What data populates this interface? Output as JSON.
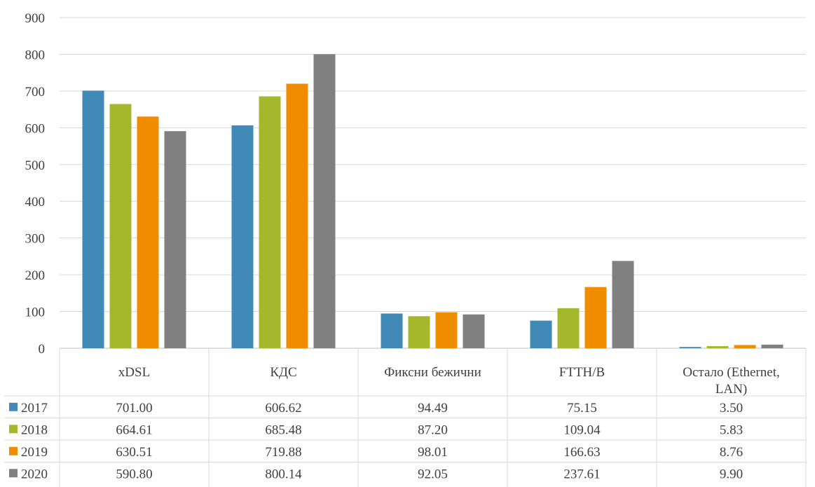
{
  "chart_data": {
    "type": "bar",
    "categories": [
      "xDSL",
      "КДС",
      "Фиксни бежични",
      "FTTH/B",
      "Остало (Ethernet, LAN)"
    ],
    "category_lines": [
      [
        "xDSL"
      ],
      [
        "КДС"
      ],
      [
        "Фиксни бежични"
      ],
      [
        "FTTH/B"
      ],
      [
        "Остало (Ethernet,",
        "LAN)"
      ]
    ],
    "series": [
      {
        "name": "2017",
        "color": "#4189B6",
        "values": [
          701.0,
          606.62,
          94.49,
          75.15,
          3.5
        ],
        "labels": [
          "701.00",
          "606.62",
          "94.49",
          "75.15",
          "3.50"
        ]
      },
      {
        "name": "2018",
        "color": "#A5B82B",
        "values": [
          664.61,
          685.48,
          87.2,
          109.04,
          5.83
        ],
        "labels": [
          "664.61",
          "685.48",
          "87.20",
          "109.04",
          "5.83"
        ]
      },
      {
        "name": "2019",
        "color": "#F08C00",
        "values": [
          630.51,
          719.88,
          98.01,
          166.63,
          8.76
        ],
        "labels": [
          "630.51",
          "719.88",
          "98.01",
          "166.63",
          "8.76"
        ]
      },
      {
        "name": "2020",
        "color": "#808080",
        "values": [
          590.8,
          800.14,
          92.05,
          237.61,
          9.9
        ],
        "labels": [
          "590.80",
          "800.14",
          "92.05",
          "237.61",
          "9.90"
        ]
      }
    ],
    "ylim": [
      0,
      900
    ],
    "yticks": [
      0,
      100,
      200,
      300,
      400,
      500,
      600,
      700,
      800,
      900
    ],
    "grid": true,
    "legend": "data-table-left",
    "xlabel": "",
    "ylabel": "",
    "title": ""
  }
}
